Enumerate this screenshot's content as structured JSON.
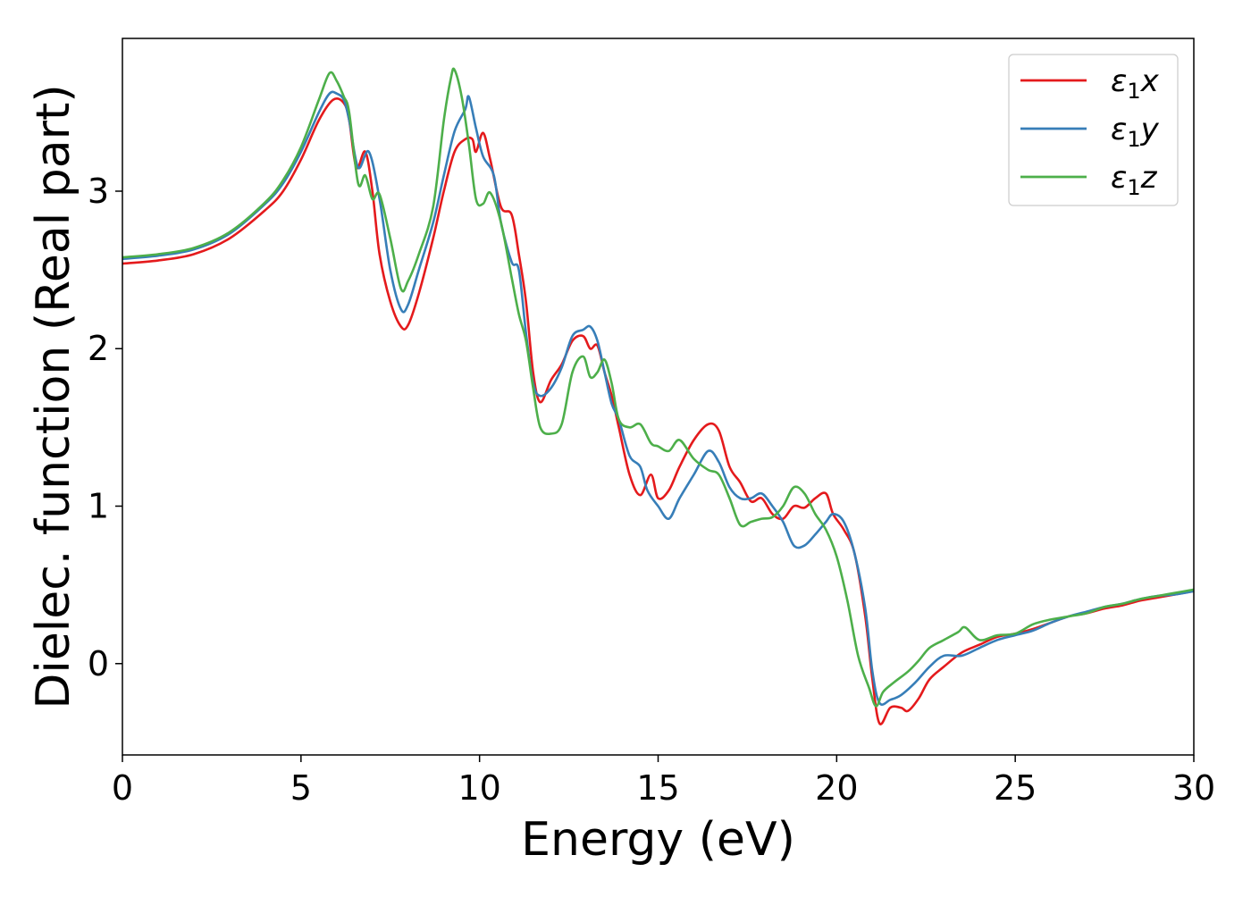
{
  "chart_data": {
    "type": "line",
    "title": "",
    "xlabel": "Energy (eV)",
    "ylabel": "Dielec. function (Real part)",
    "xlim": [
      0,
      30
    ],
    "ylim": [
      -0.58,
      3.97
    ],
    "xticks": [
      0,
      5,
      10,
      15,
      20,
      25,
      30
    ],
    "xtick_labels": [
      "0",
      "5",
      "10",
      "15",
      "20",
      "25",
      "30"
    ],
    "yticks": [
      0,
      1,
      2,
      3
    ],
    "ytick_labels": [
      "0",
      "1",
      "2",
      "3"
    ],
    "grid": false,
    "legend": {
      "position": "upper right",
      "entries": [
        {
          "base": "ε",
          "sub": "1",
          "var": "x"
        },
        {
          "base": "ε",
          "sub": "1",
          "var": "y"
        },
        {
          "base": "ε",
          "sub": "1",
          "var": "z"
        }
      ]
    },
    "series": [
      {
        "name": "ε1x",
        "color": "#e41a1c",
        "points": [
          [
            0,
            2.54
          ],
          [
            1,
            2.56
          ],
          [
            2,
            2.6
          ],
          [
            3,
            2.7
          ],
          [
            4,
            2.88
          ],
          [
            4.5,
            3.0
          ],
          [
            5,
            3.2
          ],
          [
            5.5,
            3.45
          ],
          [
            5.9,
            3.58
          ],
          [
            6.2,
            3.56
          ],
          [
            6.35,
            3.45
          ],
          [
            6.55,
            3.15
          ],
          [
            6.8,
            3.25
          ],
          [
            7.0,
            3.0
          ],
          [
            7.2,
            2.6
          ],
          [
            7.5,
            2.3
          ],
          [
            7.8,
            2.14
          ],
          [
            8.0,
            2.15
          ],
          [
            8.3,
            2.35
          ],
          [
            8.7,
            2.7
          ],
          [
            9.0,
            3.0
          ],
          [
            9.3,
            3.25
          ],
          [
            9.6,
            3.33
          ],
          [
            9.8,
            3.33
          ],
          [
            9.9,
            3.25
          ],
          [
            10.1,
            3.37
          ],
          [
            10.3,
            3.2
          ],
          [
            10.6,
            2.9
          ],
          [
            10.9,
            2.85
          ],
          [
            11.1,
            2.6
          ],
          [
            11.3,
            2.3
          ],
          [
            11.5,
            1.85
          ],
          [
            11.7,
            1.66
          ],
          [
            12.0,
            1.8
          ],
          [
            12.3,
            1.9
          ],
          [
            12.6,
            2.05
          ],
          [
            12.9,
            2.08
          ],
          [
            13.1,
            2.0
          ],
          [
            13.3,
            2.02
          ],
          [
            13.5,
            1.85
          ],
          [
            13.7,
            1.7
          ],
          [
            13.9,
            1.5
          ],
          [
            14.2,
            1.2
          ],
          [
            14.5,
            1.07
          ],
          [
            14.8,
            1.2
          ],
          [
            15.0,
            1.05
          ],
          [
            15.3,
            1.1
          ],
          [
            15.6,
            1.25
          ],
          [
            16.0,
            1.42
          ],
          [
            16.4,
            1.52
          ],
          [
            16.7,
            1.48
          ],
          [
            17.0,
            1.25
          ],
          [
            17.3,
            1.15
          ],
          [
            17.6,
            1.03
          ],
          [
            17.9,
            1.05
          ],
          [
            18.2,
            0.95
          ],
          [
            18.5,
            0.92
          ],
          [
            18.8,
            1.0
          ],
          [
            19.1,
            0.99
          ],
          [
            19.4,
            1.05
          ],
          [
            19.7,
            1.08
          ],
          [
            19.9,
            0.95
          ],
          [
            20.2,
            0.85
          ],
          [
            20.5,
            0.7
          ],
          [
            20.8,
            0.3
          ],
          [
            21.0,
            -0.1
          ],
          [
            21.2,
            -0.38
          ],
          [
            21.5,
            -0.28
          ],
          [
            21.8,
            -0.28
          ],
          [
            22.0,
            -0.3
          ],
          [
            22.3,
            -0.22
          ],
          [
            22.6,
            -0.1
          ],
          [
            23.0,
            -0.02
          ],
          [
            23.5,
            0.07
          ],
          [
            24.0,
            0.12
          ],
          [
            24.5,
            0.17
          ],
          [
            25.0,
            0.19
          ],
          [
            25.5,
            0.22
          ],
          [
            26.0,
            0.26
          ],
          [
            26.5,
            0.3
          ],
          [
            27.0,
            0.32
          ],
          [
            27.5,
            0.35
          ],
          [
            28.0,
            0.37
          ],
          [
            28.5,
            0.4
          ],
          [
            29.0,
            0.42
          ],
          [
            29.5,
            0.44
          ],
          [
            30.0,
            0.46
          ]
        ]
      },
      {
        "name": "ε1y",
        "color": "#377eb8",
        "points": [
          [
            0,
            2.57
          ],
          [
            1,
            2.59
          ],
          [
            2,
            2.63
          ],
          [
            3,
            2.73
          ],
          [
            4,
            2.92
          ],
          [
            4.5,
            3.05
          ],
          [
            5,
            3.25
          ],
          [
            5.5,
            3.5
          ],
          [
            5.8,
            3.62
          ],
          [
            6.0,
            3.62
          ],
          [
            6.2,
            3.58
          ],
          [
            6.35,
            3.45
          ],
          [
            6.6,
            3.15
          ],
          [
            6.9,
            3.25
          ],
          [
            7.2,
            2.95
          ],
          [
            7.5,
            2.5
          ],
          [
            7.8,
            2.25
          ],
          [
            8.0,
            2.28
          ],
          [
            8.3,
            2.5
          ],
          [
            8.7,
            2.8
          ],
          [
            9.0,
            3.1
          ],
          [
            9.3,
            3.38
          ],
          [
            9.6,
            3.52
          ],
          [
            9.7,
            3.6
          ],
          [
            9.9,
            3.4
          ],
          [
            10.1,
            3.22
          ],
          [
            10.4,
            3.1
          ],
          [
            10.6,
            2.8
          ],
          [
            10.9,
            2.55
          ],
          [
            11.1,
            2.5
          ],
          [
            11.3,
            2.1
          ],
          [
            11.5,
            1.78
          ],
          [
            11.7,
            1.7
          ],
          [
            12.0,
            1.75
          ],
          [
            12.3,
            1.88
          ],
          [
            12.6,
            2.08
          ],
          [
            12.9,
            2.12
          ],
          [
            13.1,
            2.14
          ],
          [
            13.3,
            2.05
          ],
          [
            13.5,
            1.85
          ],
          [
            13.7,
            1.65
          ],
          [
            13.9,
            1.55
          ],
          [
            14.2,
            1.32
          ],
          [
            14.5,
            1.25
          ],
          [
            14.7,
            1.1
          ],
          [
            15.0,
            1.0
          ],
          [
            15.3,
            0.92
          ],
          [
            15.6,
            1.05
          ],
          [
            16.0,
            1.2
          ],
          [
            16.4,
            1.35
          ],
          [
            16.7,
            1.28
          ],
          [
            17.0,
            1.12
          ],
          [
            17.3,
            1.05
          ],
          [
            17.6,
            1.05
          ],
          [
            17.9,
            1.08
          ],
          [
            18.2,
            1.0
          ],
          [
            18.5,
            0.9
          ],
          [
            18.8,
            0.75
          ],
          [
            19.1,
            0.75
          ],
          [
            19.4,
            0.82
          ],
          [
            19.7,
            0.9
          ],
          [
            19.9,
            0.95
          ],
          [
            20.2,
            0.9
          ],
          [
            20.5,
            0.7
          ],
          [
            20.8,
            0.35
          ],
          [
            21.0,
            -0.05
          ],
          [
            21.2,
            -0.25
          ],
          [
            21.5,
            -0.23
          ],
          [
            21.8,
            -0.2
          ],
          [
            22.2,
            -0.12
          ],
          [
            22.6,
            -0.02
          ],
          [
            23.0,
            0.05
          ],
          [
            23.5,
            0.05
          ],
          [
            24.0,
            0.1
          ],
          [
            24.5,
            0.15
          ],
          [
            25.0,
            0.18
          ],
          [
            25.5,
            0.21
          ],
          [
            26.0,
            0.26
          ],
          [
            26.5,
            0.3
          ],
          [
            27.0,
            0.33
          ],
          [
            27.5,
            0.36
          ],
          [
            28.0,
            0.38
          ],
          [
            28.5,
            0.41
          ],
          [
            29.0,
            0.43
          ],
          [
            29.5,
            0.44
          ],
          [
            30.0,
            0.46
          ]
        ]
      },
      {
        "name": "ε1z",
        "color": "#4daf4a",
        "points": [
          [
            0,
            2.58
          ],
          [
            1,
            2.6
          ],
          [
            2,
            2.64
          ],
          [
            3,
            2.74
          ],
          [
            4,
            2.93
          ],
          [
            4.5,
            3.07
          ],
          [
            5,
            3.28
          ],
          [
            5.5,
            3.58
          ],
          [
            5.8,
            3.75
          ],
          [
            6.0,
            3.7
          ],
          [
            6.2,
            3.6
          ],
          [
            6.35,
            3.5
          ],
          [
            6.6,
            3.05
          ],
          [
            6.8,
            3.1
          ],
          [
            7.0,
            2.95
          ],
          [
            7.2,
            2.98
          ],
          [
            7.5,
            2.7
          ],
          [
            7.8,
            2.38
          ],
          [
            8.0,
            2.43
          ],
          [
            8.3,
            2.6
          ],
          [
            8.7,
            2.9
          ],
          [
            9.0,
            3.45
          ],
          [
            9.2,
            3.72
          ],
          [
            9.3,
            3.77
          ],
          [
            9.5,
            3.6
          ],
          [
            9.7,
            3.3
          ],
          [
            9.9,
            2.95
          ],
          [
            10.1,
            2.92
          ],
          [
            10.3,
            2.99
          ],
          [
            10.6,
            2.8
          ],
          [
            10.9,
            2.45
          ],
          [
            11.1,
            2.22
          ],
          [
            11.3,
            2.05
          ],
          [
            11.5,
            1.75
          ],
          [
            11.7,
            1.5
          ],
          [
            12.0,
            1.46
          ],
          [
            12.3,
            1.52
          ],
          [
            12.6,
            1.85
          ],
          [
            12.9,
            1.95
          ],
          [
            13.1,
            1.82
          ],
          [
            13.3,
            1.85
          ],
          [
            13.5,
            1.93
          ],
          [
            13.7,
            1.78
          ],
          [
            13.9,
            1.55
          ],
          [
            14.2,
            1.5
          ],
          [
            14.5,
            1.52
          ],
          [
            14.8,
            1.4
          ],
          [
            15.0,
            1.38
          ],
          [
            15.3,
            1.35
          ],
          [
            15.6,
            1.42
          ],
          [
            16.0,
            1.3
          ],
          [
            16.4,
            1.23
          ],
          [
            16.7,
            1.2
          ],
          [
            17.0,
            1.05
          ],
          [
            17.3,
            0.88
          ],
          [
            17.6,
            0.9
          ],
          [
            17.9,
            0.92
          ],
          [
            18.2,
            0.93
          ],
          [
            18.5,
            1.0
          ],
          [
            18.8,
            1.12
          ],
          [
            19.1,
            1.08
          ],
          [
            19.4,
            0.95
          ],
          [
            19.7,
            0.85
          ],
          [
            20.0,
            0.68
          ],
          [
            20.3,
            0.4
          ],
          [
            20.6,
            0.05
          ],
          [
            20.9,
            -0.15
          ],
          [
            21.1,
            -0.27
          ],
          [
            21.3,
            -0.18
          ],
          [
            21.6,
            -0.12
          ],
          [
            22.0,
            -0.05
          ],
          [
            22.3,
            0.02
          ],
          [
            22.6,
            0.1
          ],
          [
            23.0,
            0.15
          ],
          [
            23.4,
            0.2
          ],
          [
            23.6,
            0.23
          ],
          [
            24.0,
            0.15
          ],
          [
            24.5,
            0.18
          ],
          [
            25.0,
            0.19
          ],
          [
            25.5,
            0.25
          ],
          [
            26.0,
            0.28
          ],
          [
            26.5,
            0.3
          ],
          [
            27.0,
            0.32
          ],
          [
            27.5,
            0.36
          ],
          [
            28.0,
            0.38
          ],
          [
            28.5,
            0.41
          ],
          [
            29.0,
            0.43
          ],
          [
            29.5,
            0.45
          ],
          [
            30.0,
            0.47
          ]
        ]
      }
    ]
  }
}
